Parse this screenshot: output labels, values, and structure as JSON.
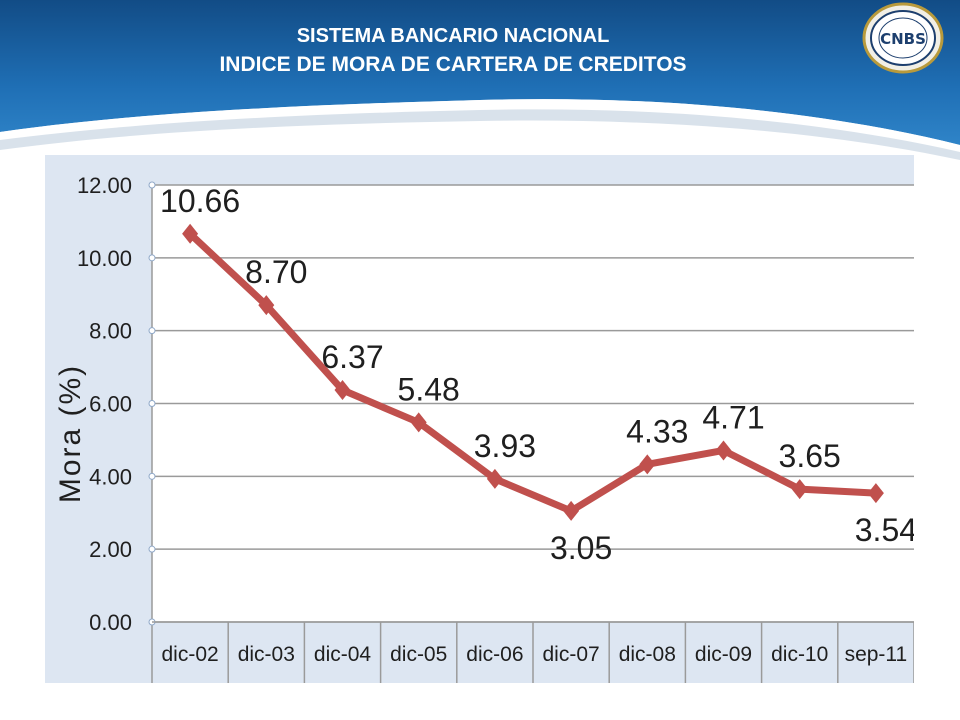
{
  "header": {
    "title_line1": "SISTEMA BANCARIO NACIONAL",
    "title_line2": "INDICE DE MORA DE CARTERA DE CREDITOS",
    "logo_text": "CNBS"
  },
  "colors": {
    "header_blue": "#1f6fb5",
    "header_dark": "#124c86",
    "line": "#c0504d",
    "plot_bg": "#dde6f2"
  },
  "chart_data": {
    "type": "line",
    "title": "",
    "xlabel": "",
    "ylabel": "Mora (%)",
    "categories": [
      "dic-02",
      "dic-03",
      "dic-04",
      "dic-05",
      "dic-06",
      "dic-07",
      "dic-08",
      "dic-09",
      "dic-10",
      "sep-11"
    ],
    "series": [
      {
        "values": [
          10.66,
          8.7,
          6.37,
          5.48,
          3.93,
          3.05,
          4.33,
          4.71,
          3.65,
          3.54
        ]
      }
    ],
    "data_labels": [
      "10.66",
      "8.70",
      "6.37",
      "5.48",
      "3.93",
      "3.05",
      "4.33",
      "4.71",
      "3.65",
      "3.54"
    ],
    "label_positions": [
      "above",
      "above",
      "above",
      "above",
      "above",
      "below",
      "above",
      "above",
      "above",
      "below"
    ],
    "yticks": [
      "0.00",
      "2.00",
      "4.00",
      "6.00",
      "8.00",
      "10.00",
      "12.00"
    ],
    "ylim": [
      0,
      12
    ],
    "grid": true,
    "legend": "none"
  }
}
